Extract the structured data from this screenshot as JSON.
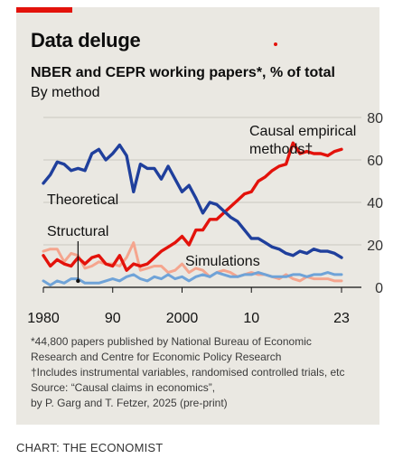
{
  "headline": "Data deluge",
  "subtitle": "NBER and CEPR working papers*, % of total",
  "subtitle2": "By method",
  "notes": [
    "*44,800 papers published by National Bureau of Economic",
    "Research and Centre for Economic Policy Research",
    "†Includes instrumental variables, randomised controlled trials, etc",
    "Source: “Causal claims in economics”,",
    "by P. Garg and T. Fetzer, 2025 (pre-print)"
  ],
  "credit": "CHART: THE ECONOMIST",
  "colors": {
    "theoretical": "#1f3f9c",
    "causal": "#e3120b",
    "structural": "#f5a58e",
    "simulations": "#6fa3d8",
    "brand": "#e3120b",
    "background": "#eae8e2"
  },
  "chart_data": {
    "type": "line",
    "x_tick_labels": [
      "1980",
      "90",
      "2000",
      "10",
      "23"
    ],
    "x_ticks": [
      1980,
      1990,
      2000,
      2010,
      2023
    ],
    "y_tick_labels": [
      "0",
      "20",
      "40",
      "60",
      "80"
    ],
    "y_ticks": [
      0,
      20,
      40,
      60,
      80
    ],
    "ylim": [
      0,
      80
    ],
    "xlim": [
      1980,
      2023
    ],
    "grid": true,
    "series": [
      {
        "name": "Theoretical",
        "key": "theoretical",
        "x": [
          1980,
          1981,
          1982,
          1983,
          1984,
          1985,
          1986,
          1987,
          1988,
          1989,
          1990,
          1991,
          1992,
          1993,
          1994,
          1995,
          1996,
          1997,
          1998,
          1999,
          2000,
          2001,
          2002,
          2003,
          2004,
          2005,
          2006,
          2007,
          2008,
          2009,
          2010,
          2011,
          2012,
          2013,
          2014,
          2015,
          2016,
          2017,
          2018,
          2019,
          2020,
          2021,
          2022,
          2023
        ],
        "values": [
          49,
          53,
          59,
          58,
          55,
          56,
          55,
          63,
          65,
          60,
          63,
          67,
          62,
          45,
          58,
          56,
          56,
          51,
          57,
          51,
          45,
          48,
          42,
          35,
          40,
          39,
          36,
          33,
          31,
          27,
          23,
          23,
          21,
          19,
          18,
          16,
          15,
          17,
          16,
          18,
          17,
          17,
          16,
          14
        ]
      },
      {
        "name": "Causal empirical methods†",
        "key": "causal",
        "x": [
          1980,
          1981,
          1982,
          1983,
          1984,
          1985,
          1986,
          1987,
          1988,
          1989,
          1990,
          1991,
          1992,
          1993,
          1994,
          1995,
          1996,
          1997,
          1998,
          1999,
          2000,
          2001,
          2002,
          2003,
          2004,
          2005,
          2006,
          2007,
          2008,
          2009,
          2010,
          2011,
          2012,
          2013,
          2014,
          2015,
          2016,
          2017,
          2018,
          2019,
          2020,
          2021,
          2022,
          2023
        ],
        "values": [
          15,
          10,
          13,
          11,
          10,
          14,
          11,
          14,
          15,
          11,
          10,
          15,
          8,
          11,
          10,
          11,
          14,
          17,
          19,
          21,
          24,
          20,
          27,
          27,
          32,
          32,
          35,
          38,
          41,
          44,
          45,
          50,
          52,
          55,
          57,
          58,
          68,
          63,
          64,
          63,
          63,
          62,
          64,
          65
        ]
      },
      {
        "name": "Structural",
        "key": "structural",
        "x": [
          1980,
          1981,
          1982,
          1983,
          1984,
          1985,
          1986,
          1987,
          1988,
          1989,
          1990,
          1991,
          1992,
          1993,
          1994,
          1995,
          1996,
          1997,
          1998,
          1999,
          2000,
          2001,
          2002,
          2003,
          2004,
          2005,
          2006,
          2007,
          2008,
          2009,
          2010,
          2011,
          2012,
          2013,
          2014,
          2015,
          2016,
          2017,
          2018,
          2019,
          2020,
          2021,
          2022,
          2023
        ],
        "values": [
          17,
          18,
          18,
          12,
          16,
          15,
          9,
          10,
          12,
          11,
          11,
          10,
          14,
          21,
          8,
          9,
          10,
          10,
          7,
          8,
          11,
          7,
          9,
          8,
          5,
          7,
          8,
          7,
          5,
          6,
          7,
          6,
          6,
          5,
          4,
          6,
          4,
          3,
          5,
          4,
          4,
          4,
          3,
          3
        ]
      },
      {
        "name": "Simulations",
        "key": "simulations",
        "x": [
          1980,
          1981,
          1982,
          1983,
          1984,
          1985,
          1986,
          1987,
          1988,
          1989,
          1990,
          1991,
          1992,
          1993,
          1994,
          1995,
          1996,
          1997,
          1998,
          1999,
          2000,
          2001,
          2002,
          2003,
          2004,
          2005,
          2006,
          2007,
          2008,
          2009,
          2010,
          2011,
          2012,
          2013,
          2014,
          2015,
          2016,
          2017,
          2018,
          2019,
          2020,
          2021,
          2022,
          2023
        ],
        "values": [
          3,
          1,
          3,
          2,
          4,
          4,
          2,
          2,
          2,
          3,
          4,
          3,
          5,
          6,
          4,
          3,
          5,
          4,
          6,
          4,
          5,
          3,
          5,
          6,
          5,
          7,
          6,
          5,
          5,
          6,
          6,
          7,
          6,
          5,
          5,
          5,
          6,
          6,
          5,
          6,
          6,
          7,
          6,
          6
        ]
      }
    ],
    "labels": {
      "theoretical": "Theoretical",
      "structural": "Structural",
      "simulations": "Simulations",
      "causal_line1": "Causal empirical",
      "causal_line2": "methods†"
    }
  }
}
